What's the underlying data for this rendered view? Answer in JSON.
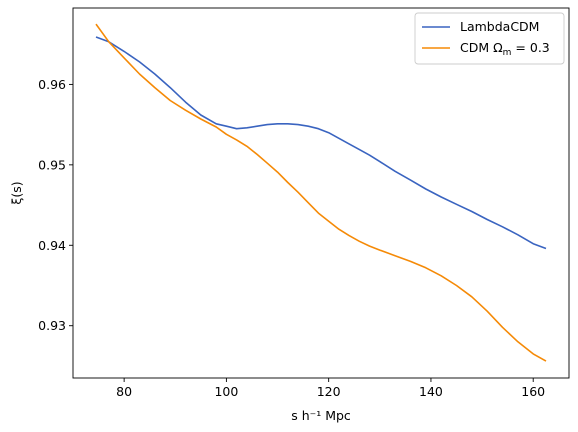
{
  "chart_data": {
    "type": "line",
    "xlabel": "s h⁻¹ Mpc",
    "ylabel": "ξ(s)",
    "xlim": [
      70,
      167
    ],
    "ylim": [
      0.9235,
      0.9695
    ],
    "xticks": [
      80,
      100,
      120,
      140,
      160
    ],
    "yticks": [
      0.93,
      0.94,
      0.95,
      0.96
    ],
    "ytick_labels": [
      "0.93",
      "0.94",
      "0.95",
      "0.96"
    ],
    "grid": false,
    "legend_position": "top-right",
    "series": [
      {
        "name": "LambdaCDM",
        "legend_label": "LambdaCDM",
        "color": "#3a64c0",
        "x": [
          74.5,
          77,
          80,
          83,
          86,
          89,
          92,
          95,
          98,
          100,
          102,
          104,
          106,
          108,
          110,
          112,
          114,
          116,
          118,
          120,
          122,
          124,
          126,
          128,
          130,
          133,
          136,
          139,
          142,
          145,
          148,
          151,
          154,
          157,
          160,
          162.5
        ],
        "y": [
          0.9659,
          0.9653,
          0.9641,
          0.9628,
          0.9613,
          0.9596,
          0.9578,
          0.9562,
          0.9551,
          0.9548,
          0.9545,
          0.9546,
          0.9548,
          0.955,
          0.9551,
          0.9551,
          0.955,
          0.9548,
          0.9545,
          0.954,
          0.9533,
          0.9526,
          0.9519,
          0.9512,
          0.9504,
          0.9492,
          0.9481,
          0.947,
          0.946,
          0.9451,
          0.9442,
          0.9432,
          0.9423,
          0.9413,
          0.9402,
          0.9396
        ]
      },
      {
        "name": "CDM Ωm = 0.3",
        "legend_label": "CDM Ω",
        "legend_sub": "m",
        "legend_suffix": " = 0.3",
        "color": "#f58a07",
        "x": [
          74.5,
          77,
          80,
          83,
          86,
          89,
          92,
          95,
          98,
          100,
          102,
          104,
          106,
          108,
          110,
          112,
          114,
          116,
          118,
          120,
          122,
          124,
          126,
          128,
          130,
          133,
          136,
          139,
          142,
          145,
          148,
          151,
          154,
          157,
          160,
          162.5
        ],
        "y": [
          0.9675,
          0.9653,
          0.9633,
          0.9613,
          0.9596,
          0.958,
          0.9568,
          0.9557,
          0.9547,
          0.9538,
          0.9531,
          0.9523,
          0.9513,
          0.9502,
          0.9491,
          0.9478,
          0.9466,
          0.9453,
          0.944,
          0.943,
          0.942,
          0.9412,
          0.9405,
          0.9399,
          0.9394,
          0.9387,
          0.938,
          0.9372,
          0.9362,
          0.935,
          0.9336,
          0.9318,
          0.9298,
          0.928,
          0.9265,
          0.9256
        ]
      }
    ]
  }
}
